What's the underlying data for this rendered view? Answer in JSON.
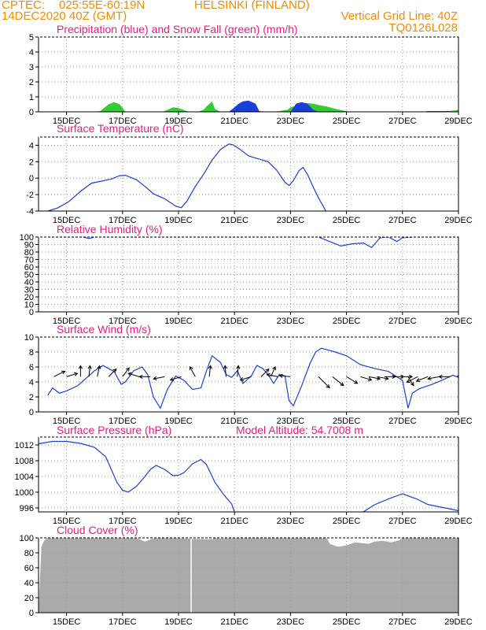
{
  "header": {
    "line1_left": "CPTEC:",
    "line1_coords": "025:55E-60:19N",
    "line1_place": "HELSINKI (FINLAND)",
    "line2_left": "14DEC2020 40Z (GMT)",
    "line2_right": "Vertical Grid Line: 40Z",
    "line3_right": "TQ0126L028",
    "colors": {
      "header": "#f08c00",
      "title": "#e0207a"
    }
  },
  "chart_data": [
    {
      "type": "area",
      "title": "Precipitation (blue) and Snow Fall (green) (mm/h)",
      "xlabel": "",
      "ylabel": "",
      "x_ticks": [
        "15DEC",
        "17DEC",
        "19DEC",
        "21DEC",
        "23DEC",
        "25DEC",
        "27DEC",
        "29DEC"
      ],
      "y_ticks": [
        0,
        1,
        2,
        3,
        4,
        5
      ],
      "ylim": [
        0,
        5
      ],
      "colors": {
        "snow": "#33cc33",
        "precip": "#1a3fd6"
      },
      "series": [
        {
          "name": "Snow Fall",
          "x": [
            14.33,
            15.5,
            16.0,
            16.2,
            16.5,
            16.7,
            16.9,
            17.05,
            17.1,
            18.4,
            18.5,
            18.8,
            19.0,
            19.3,
            19.4,
            19.7,
            19.9,
            20.0,
            20.2,
            20.3,
            20.5,
            21.2,
            21.5,
            21.7,
            21.9,
            22.3,
            22.6,
            22.9,
            23.0,
            23.3,
            23.5,
            23.8,
            24.0,
            24.3,
            24.6,
            25.0,
            25.1,
            28.0,
            28.5,
            28.9,
            29.0
          ],
          "values": [
            0,
            0,
            0,
            0.05,
            0.5,
            0.65,
            0.5,
            0.15,
            0,
            0,
            0.05,
            0.3,
            0.25,
            0.05,
            0,
            0,
            0.15,
            0.35,
            0.7,
            0.2,
            0,
            0,
            0.05,
            0.15,
            0.05,
            0,
            0.05,
            0.15,
            0.3,
            0.45,
            0.6,
            0.55,
            0.45,
            0.35,
            0.2,
            0.05,
            0,
            0,
            0.02,
            0.1,
            0.15
          ]
        },
        {
          "name": "Precipitation",
          "x": [
            14.33,
            20.8,
            21.0,
            21.15,
            21.3,
            21.5,
            21.75,
            21.9,
            22.3,
            23.0,
            23.2,
            23.4,
            23.6,
            23.8,
            24.0,
            27.7,
            27.9,
            28.3,
            28.6,
            29.0
          ],
          "values": [
            0,
            0,
            0.3,
            0.55,
            0.7,
            0.75,
            0.55,
            0,
            0,
            0,
            0.55,
            0.65,
            0.55,
            0.15,
            0,
            0,
            0.05,
            0.05,
            0.05,
            0
          ]
        }
      ]
    },
    {
      "type": "line",
      "title": "Surface Temperature (nC)",
      "xlabel": "",
      "ylabel": "",
      "x_ticks": [
        "15DEC",
        "17DEC",
        "19DEC",
        "21DEC",
        "23DEC",
        "25DEC",
        "27DEC",
        "29DEC"
      ],
      "y_ticks": [
        -4,
        -2,
        0,
        2,
        4
      ],
      "ylim": [
        -4,
        5
      ],
      "color": "#1a3fd6",
      "x": [
        14.33,
        14.7,
        15.1,
        15.5,
        15.9,
        16.2,
        16.6,
        16.9,
        17.1,
        17.5,
        17.8,
        18.1,
        18.5,
        18.9,
        19.1,
        19.3,
        19.6,
        19.9,
        20.2,
        20.5,
        20.8,
        20.95,
        21.2,
        21.5,
        21.8,
        22.2,
        22.5,
        22.8,
        22.95,
        23.1,
        23.3,
        23.45,
        23.6,
        23.8,
        24.0,
        24.2,
        24.26
      ],
      "values": [
        -4.0,
        -3.6,
        -2.8,
        -1.6,
        -0.6,
        -0.4,
        -0.1,
        0.3,
        0.35,
        -0.2,
        -1.0,
        -1.9,
        -2.5,
        -3.4,
        -3.6,
        -2.8,
        -1.0,
        0.5,
        2.2,
        3.5,
        4.15,
        4.05,
        3.5,
        2.7,
        2.4,
        2.0,
        1.0,
        -0.5,
        -0.9,
        -0.3,
        0.9,
        1.3,
        0.5,
        -1.0,
        -2.4,
        -3.6,
        -4.0
      ]
    },
    {
      "type": "line",
      "title": "Relative Humidity (%)",
      "xlabel": "",
      "ylabel": "",
      "x_ticks": [
        "15DEC",
        "17DEC",
        "19DEC",
        "21DEC",
        "23DEC",
        "25DEC",
        "27DEC",
        "29DEC"
      ],
      "y_ticks": [
        0,
        10,
        20,
        30,
        40,
        50,
        60,
        70,
        80,
        90,
        100
      ],
      "ylim": [
        0,
        100
      ],
      "color": "#1a3fd6",
      "x": [
        14.33,
        15.6,
        15.8,
        16.0,
        24.0,
        24.4,
        24.8,
        25.2,
        25.6,
        25.9,
        26.2,
        26.5,
        26.8,
        27.0,
        27.4,
        27.8,
        29.0
      ],
      "values": [
        100,
        100,
        98,
        100,
        100,
        94,
        88,
        91,
        92,
        86,
        99,
        100,
        94,
        99,
        100,
        100,
        100
      ]
    },
    {
      "type": "line",
      "title": "Surface Wind (m/s)",
      "xlabel": "",
      "ylabel": "",
      "x_ticks": [
        "15DEC",
        "17DEC",
        "19DEC",
        "21DEC",
        "23DEC",
        "25DEC",
        "27DEC",
        "29DEC"
      ],
      "y_ticks": [
        0,
        2,
        4,
        6,
        8,
        10
      ],
      "ylim": [
        0,
        10
      ],
      "color": "#1a3fd6",
      "x": [
        14.33,
        14.5,
        14.75,
        15.0,
        15.4,
        15.7,
        16.0,
        16.3,
        16.7,
        16.95,
        17.1,
        17.4,
        17.7,
        17.9,
        18.1,
        18.35,
        18.6,
        18.9,
        19.2,
        19.5,
        19.8,
        20.0,
        20.2,
        20.5,
        20.7,
        20.9,
        21.1,
        21.3,
        21.6,
        21.8,
        22.0,
        22.2,
        22.4,
        22.6,
        22.8,
        22.95,
        23.1,
        23.4,
        23.7,
        23.9,
        24.1,
        24.3,
        24.6,
        25.0,
        25.5,
        26.0,
        26.5,
        27.0,
        27.2,
        27.35,
        27.6,
        28.0,
        28.4,
        28.8,
        29.0
      ],
      "values": [
        2.2,
        3.2,
        2.5,
        2.8,
        3.5,
        4.5,
        5.5,
        6.2,
        5.4,
        3.7,
        4.0,
        5.5,
        6.0,
        5.0,
        2.0,
        0.5,
        3.0,
        4.8,
        4.2,
        3.0,
        3.2,
        5.5,
        7.5,
        6.6,
        5.0,
        4.6,
        5.5,
        3.8,
        4.8,
        6.2,
        5.8,
        5.0,
        3.8,
        5.0,
        4.8,
        1.5,
        0.8,
        3.5,
        6.5,
        8.0,
        8.5,
        8.3,
        8.0,
        7.5,
        6.3,
        5.8,
        5.4,
        4.2,
        0.5,
        2.5,
        3.1,
        3.6,
        4.2,
        4.9,
        4.6
      ],
      "vectors": [
        {
          "day": 14.55,
          "u": 1,
          "v": -0.5
        },
        {
          "day": 15.0,
          "u": 1,
          "v": -0.3
        },
        {
          "day": 15.5,
          "u": 0,
          "v": -1
        },
        {
          "day": 15.8,
          "u": 0.1,
          "v": -1
        },
        {
          "day": 16.1,
          "u": 0.2,
          "v": -1
        },
        {
          "day": 16.5,
          "u": 0.7,
          "v": -0.7
        },
        {
          "day": 17.0,
          "u": 0.6,
          "v": -0.8
        },
        {
          "day": 17.6,
          "u": -1,
          "v": -0.3
        },
        {
          "day": 18.0,
          "u": -1,
          "v": 0
        },
        {
          "day": 18.5,
          "u": -1,
          "v": 0.2
        },
        {
          "day": 19.1,
          "u": -1,
          "v": 0.3
        },
        {
          "day": 19.6,
          "u": -0.5,
          "v": -0.9
        },
        {
          "day": 20.1,
          "u": 0.1,
          "v": -1
        },
        {
          "day": 20.7,
          "u": -0.1,
          "v": -1
        },
        {
          "day": 21.1,
          "u": 0.1,
          "v": -1
        },
        {
          "day": 21.6,
          "u": -1,
          "v": 0.3
        },
        {
          "day": 21.95,
          "u": 0.7,
          "v": -0.7
        },
        {
          "day": 22.3,
          "u": 0.4,
          "v": -0.9
        },
        {
          "day": 22.55,
          "u": -1,
          "v": -0.2
        },
        {
          "day": 23.0,
          "u": -1,
          "v": -0.1
        },
        {
          "day": 24.0,
          "u": 1,
          "v": 1
        },
        {
          "day": 24.5,
          "u": 1,
          "v": 0.8
        },
        {
          "day": 25.0,
          "u": 1,
          "v": 0.6
        },
        {
          "day": 25.5,
          "u": 1,
          "v": 0.3
        },
        {
          "day": 25.8,
          "u": 1,
          "v": 0.2
        },
        {
          "day": 26.1,
          "u": 1,
          "v": 0.2
        },
        {
          "day": 26.35,
          "u": 1,
          "v": 0
        },
        {
          "day": 26.65,
          "u": 1,
          "v": 0
        },
        {
          "day": 26.95,
          "u": 1,
          "v": 0
        },
        {
          "day": 27.2,
          "u": 0.5,
          "v": 0.8
        },
        {
          "day": 27.55,
          "u": -1,
          "v": 0.5
        },
        {
          "day": 27.9,
          "u": -1,
          "v": 0.4
        },
        {
          "day": 28.3,
          "u": -1,
          "v": 0.2
        },
        {
          "day": 28.7,
          "u": -1,
          "v": 0
        },
        {
          "day": 28.95,
          "u": 0.7,
          "v": -0.7
        }
      ]
    },
    {
      "type": "line",
      "title": "Surface Pressure (hPa)",
      "model_altitude": "Model Altitude: 54.7008 m",
      "xlabel": "",
      "ylabel": "",
      "x_ticks": [
        "15DEC",
        "17DEC",
        "19DEC",
        "21DEC",
        "23DEC",
        "25DEC",
        "27DEC",
        "29DEC"
      ],
      "y_ticks": [
        996,
        1000,
        1004,
        1008,
        1012
      ],
      "ylim": [
        995,
        1014
      ],
      "color": "#1a3fd6",
      "segments": [
        {
          "x": [
            14.0,
            14.5,
            15.0,
            15.5,
            16.0,
            16.4,
            16.8,
            17.0,
            17.2,
            17.5,
            17.8,
            18.0,
            18.2,
            18.5,
            18.8,
            19.0,
            19.2,
            19.5,
            19.8,
            20.0,
            20.3,
            20.6,
            20.9,
            21.0
          ],
          "values": [
            1012.3,
            1012.9,
            1012.9,
            1012.4,
            1011.4,
            1009.0,
            1002.5,
            1000.5,
            1000.0,
            1001.5,
            1004.0,
            1005.8,
            1006.8,
            1005.8,
            1004.2,
            1004.3,
            1005.0,
            1007.2,
            1008.3,
            1007.0,
            1002.5,
            999.5,
            997.0,
            994.9
          ]
        },
        {
          "x": [
            25.6,
            26.0,
            26.5,
            27.0,
            27.5,
            27.9,
            28.3,
            28.6,
            29.0
          ],
          "values": [
            995.0,
            996.8,
            998.3,
            999.6,
            998.3,
            996.9,
            996.3,
            995.9,
            995.3
          ]
        }
      ]
    },
    {
      "type": "area",
      "title": "Cloud Cover (%)",
      "xlabel": "",
      "ylabel": "",
      "x_ticks": [
        "15DEC",
        "17DEC",
        "19DEC",
        "21DEC",
        "23DEC",
        "25DEC",
        "27DEC",
        "29DEC"
      ],
      "y_ticks": [
        0,
        20,
        40,
        60,
        80,
        100
      ],
      "ylim": [
        0,
        100
      ],
      "color": "#aaaaaa",
      "x": [
        14.0,
        14.1,
        14.2,
        14.3,
        17.5,
        17.8,
        18.0,
        18.2,
        18.5,
        20.2,
        20.3,
        20.5,
        21.0,
        21.5,
        23.5,
        24.3,
        24.4,
        24.7,
        25.0,
        25.3,
        25.8,
        26.0,
        26.3,
        26.6,
        26.9,
        27.0,
        27.5,
        29.0
      ],
      "values": [
        0,
        88,
        96,
        100,
        100,
        95,
        98,
        100,
        100,
        98,
        100,
        99,
        100,
        100,
        100,
        100,
        92,
        88,
        90,
        94,
        92,
        95,
        96,
        94,
        97,
        100,
        100,
        100
      ],
      "gap_day": 19.45
    }
  ]
}
